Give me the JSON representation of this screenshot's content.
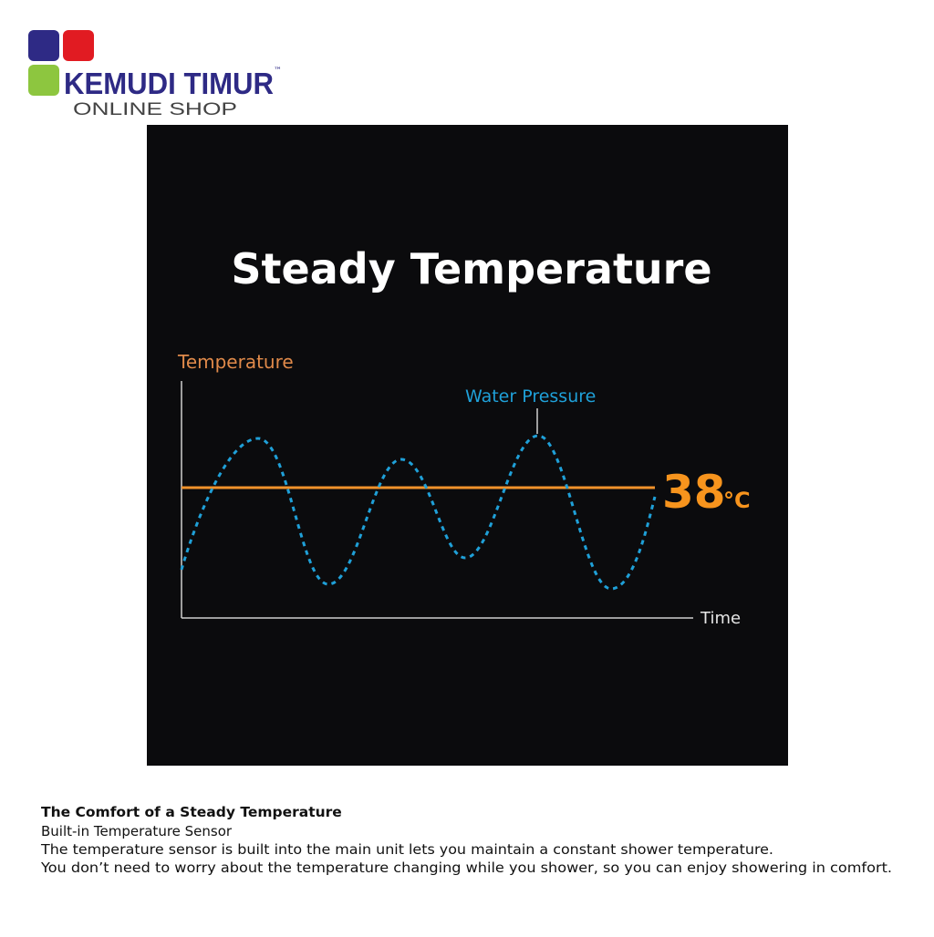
{
  "logo": {
    "name": "KEMUDI TIMUR",
    "trademark": "™",
    "subtitle": "ONLINE SHOP"
  },
  "panel": {
    "title": "Steady Temperature",
    "y_axis_label": "Temperature",
    "series_label": "Water Pressure",
    "value": "38",
    "unit": "°C",
    "x_axis_label": "Time"
  },
  "caption": {
    "heading": "The Comfort of a Steady Temperature",
    "lines": [
      "Built-in Temperature Sensor",
      "The temperature sensor is built into the main unit lets you maintain a constant shower temperature.",
      "You don’t need to worry about the temperature changing while you shower, so you can enjoy showering in comfort."
    ]
  }
}
